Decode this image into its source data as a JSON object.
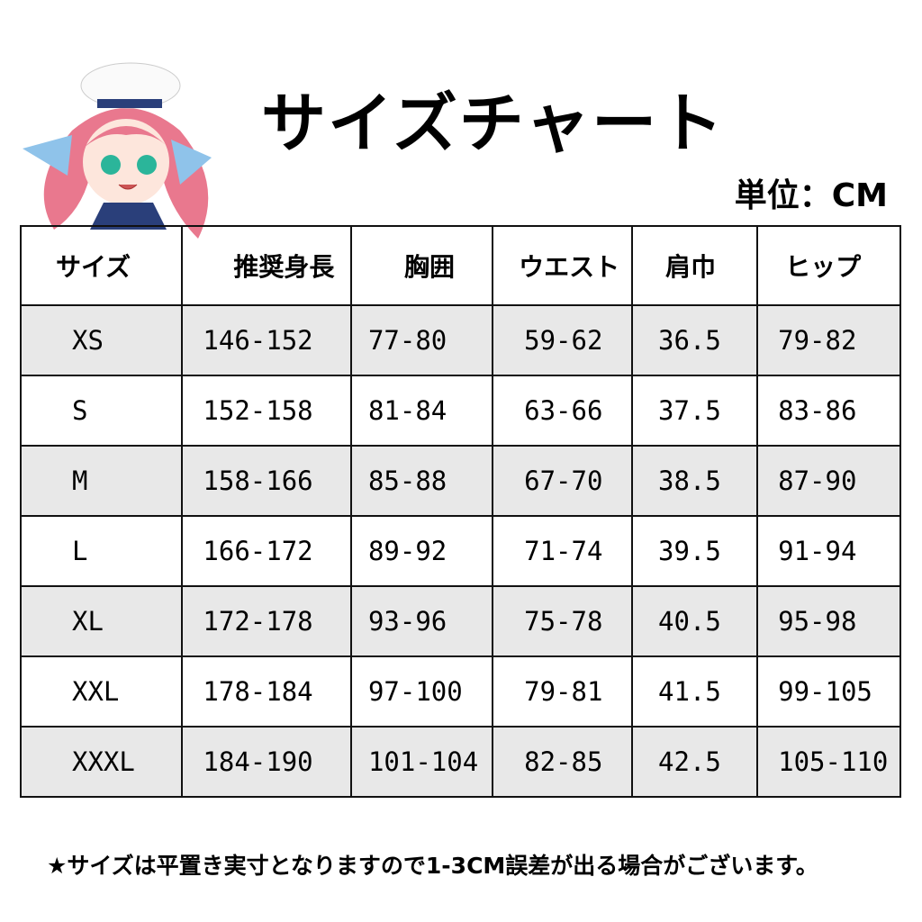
{
  "title": "サイズチャート",
  "unit": "単位：CM",
  "table": {
    "headers": [
      "サイズ",
      "推奨身長",
      "胸囲",
      "ウエスト",
      "肩巾",
      "ヒップ"
    ],
    "rows": [
      [
        "XS",
        "146-152",
        "77-80",
        "59-62",
        "36.5",
        "79-82"
      ],
      [
        "S",
        "152-158",
        "81-84",
        "63-66",
        "37.5",
        "83-86"
      ],
      [
        "M",
        "158-166",
        "85-88",
        "67-70",
        "38.5",
        "87-90"
      ],
      [
        "L",
        "166-172",
        "89-92",
        "71-74",
        "39.5",
        "91-94"
      ],
      [
        "XL",
        "172-178",
        "93-96",
        "75-78",
        "40.5",
        "95-98"
      ],
      [
        "XXL",
        "178-184",
        "97-100",
        "79-81",
        "41.5",
        "99-105"
      ],
      [
        "XXXL",
        "184-190",
        "101-104",
        "82-85",
        "42.5",
        "105-110"
      ]
    ]
  },
  "note": "★サイズは平置き実寸となりますので1-3CM誤差が出る場合がございます。",
  "colors": {
    "shade": "#e8e8e8",
    "hair": "#e9788e",
    "ribbon": "#8fc3ea"
  }
}
